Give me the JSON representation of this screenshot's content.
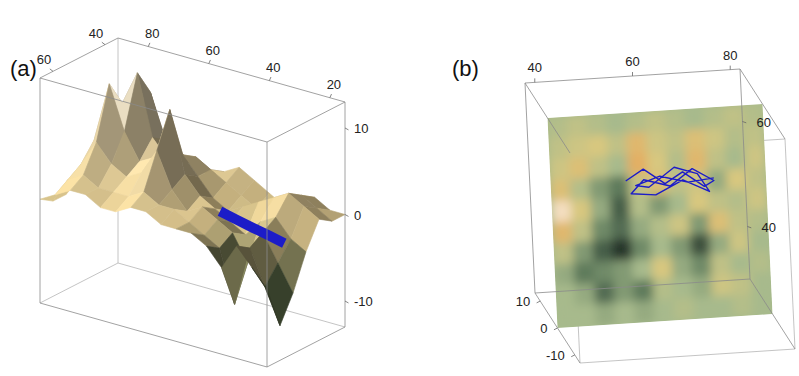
{
  "chart_data": [
    {
      "type": "surface",
      "title": "(a)",
      "x": [
        15,
        20,
        25,
        30,
        35,
        40,
        45,
        50,
        55,
        60,
        65,
        70,
        75,
        80,
        85,
        90
      ],
      "y": [
        35,
        40,
        45,
        50,
        55,
        60,
        65
      ],
      "z": [
        [
          0,
          0,
          1,
          0,
          -1,
          0,
          1,
          2,
          1,
          0,
          1,
          2,
          3,
          2,
          1,
          0
        ],
        [
          0,
          1,
          2,
          1,
          0,
          -1,
          0,
          1,
          2,
          3,
          2,
          4,
          9,
          6,
          2,
          1
        ],
        [
          1,
          2,
          3,
          2,
          1,
          0,
          -1,
          0,
          2,
          4,
          3,
          5,
          12,
          8,
          3,
          1
        ],
        [
          -2,
          -1,
          1,
          0,
          -2,
          -1,
          0,
          1,
          3,
          10,
          4,
          3,
          6,
          11,
          4,
          -1
        ],
        [
          -6,
          -3,
          0,
          -4,
          -1,
          0,
          1,
          0,
          2,
          6,
          3,
          2,
          3,
          5,
          2,
          -2
        ],
        [
          -9,
          -5,
          -1,
          -8,
          -2,
          -1,
          0,
          1,
          1,
          2,
          1,
          1,
          1,
          2,
          1,
          -2
        ],
        [
          -4,
          -2,
          0,
          -3,
          -1,
          0,
          0,
          0,
          1,
          1,
          0,
          0,
          1,
          1,
          0,
          -1
        ]
      ],
      "xlim": [
        15,
        90
      ],
      "ylim": [
        35,
        65
      ],
      "zlim": [
        -13,
        13
      ],
      "xticks": [
        80,
        60,
        40,
        20
      ],
      "yticks": [
        60,
        40
      ],
      "zticks": [
        10,
        0,
        -10
      ],
      "trajectory": {
        "x": [
          43,
          36,
          29,
          22,
          16
        ],
        "y": [
          50.5,
          52.3,
          54,
          55.7,
          57.2
        ],
        "z": [
          0,
          0,
          0,
          0,
          0
        ],
        "color": "#1c1cc8"
      }
    },
    {
      "type": "heatmap",
      "title": "(b)",
      "x": [
        40,
        44,
        48,
        52,
        56,
        60,
        64,
        68,
        72,
        76,
        80
      ],
      "y": [
        68,
        64,
        60,
        56,
        52,
        48,
        44,
        40,
        36,
        32
      ],
      "z": [
        [
          1,
          2,
          1,
          0,
          1,
          2,
          1,
          0,
          1,
          2,
          1
        ],
        [
          2,
          3,
          4,
          2,
          6,
          3,
          2,
          5,
          3,
          1,
          2
        ],
        [
          3,
          5,
          2,
          0,
          7,
          4,
          1,
          6,
          2,
          0,
          3
        ],
        [
          5,
          1,
          -2,
          -4,
          2,
          5,
          2,
          3,
          -1,
          4,
          2
        ],
        [
          10,
          4,
          -1,
          -6,
          1,
          -2,
          0,
          4,
          2,
          1,
          3
        ],
        [
          6,
          2,
          -3,
          -5,
          -1,
          1,
          3,
          -2,
          5,
          2,
          1
        ],
        [
          2,
          -2,
          -6,
          -9,
          -3,
          0,
          -2,
          -7,
          -1,
          3,
          0
        ],
        [
          -1,
          -4,
          -3,
          -2,
          0,
          4,
          -1,
          -3,
          2,
          0,
          1
        ],
        [
          0,
          -1,
          -5,
          -2,
          -4,
          1,
          0,
          -1,
          3,
          2,
          0
        ],
        [
          0,
          0,
          -1,
          0,
          -1,
          0,
          1,
          0,
          0,
          1,
          0
        ]
      ],
      "xlim": [
        38,
        82
      ],
      "ylim": [
        30,
        70
      ],
      "zlim": [
        -13,
        13
      ],
      "xticks": [
        40,
        60,
        80
      ],
      "yticks": [
        60,
        40
      ],
      "zticks": [
        10,
        0,
        -10
      ],
      "trajectory": {
        "x": [
          54,
          58,
          62,
          66,
          70,
          72,
          68,
          63,
          58,
          55,
          60,
          66,
          71,
          69,
          64,
          59,
          56,
          61,
          67,
          72
        ],
        "y": [
          56,
          57.5,
          55,
          56.5,
          54,
          55,
          57,
          54.5,
          55.5,
          53.5,
          53,
          55,
          53,
          56,
          58,
          54,
          55,
          56.5,
          54.5,
          55.5
        ],
        "z": [
          2,
          3,
          2,
          3,
          2,
          2,
          3,
          2,
          3,
          2,
          2,
          3,
          2,
          3,
          2,
          3,
          2,
          2,
          3,
          2
        ],
        "color": "#1c1cc8"
      }
    }
  ]
}
